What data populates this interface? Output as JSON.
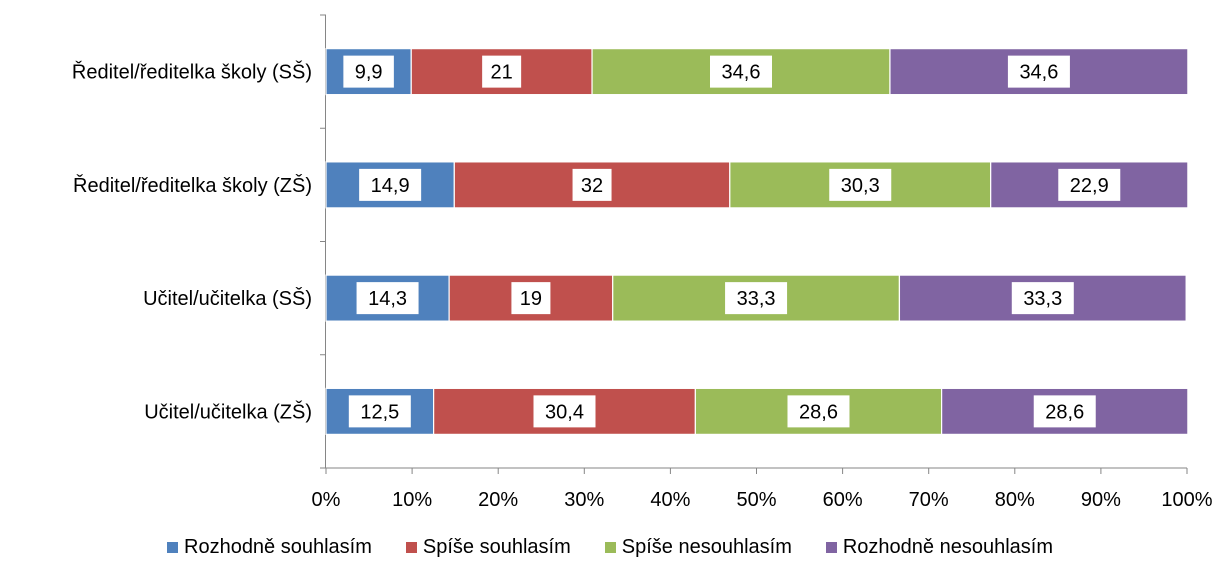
{
  "chart_data": {
    "type": "bar",
    "orientation": "horizontal",
    "stacked": true,
    "percent_stacked": true,
    "title": "",
    "xlabel": "",
    "ylabel": "",
    "categories": [
      "Ředitel/ředitelka školy (SŠ)",
      "Ředitel/ředitelka školy (ZŠ)",
      "Učitel/učitelka (SŠ)",
      "Učitel/učitelka (ZŠ)"
    ],
    "series": [
      {
        "name": "Rozhodně souhlasím",
        "color": "#4F81BD",
        "values": [
          9.9,
          14.9,
          14.3,
          12.5
        ],
        "labels": [
          "9,9",
          "14,9",
          "14,3",
          "12,5"
        ]
      },
      {
        "name": "Spíše souhlasím",
        "color": "#C0504D",
        "values": [
          21,
          32,
          19,
          30.4
        ],
        "labels": [
          "21",
          "32",
          "19",
          "30,4"
        ]
      },
      {
        "name": "Spíše nesouhlasím",
        "color": "#9BBB59",
        "values": [
          34.6,
          30.3,
          33.3,
          28.6
        ],
        "labels": [
          "34,6",
          "30,3",
          "33,3",
          "28,6"
        ]
      },
      {
        "name": "Rozhodně nesouhlasím",
        "color": "#8064A2",
        "values": [
          34.6,
          22.9,
          33.3,
          28.6
        ],
        "labels": [
          "34,6",
          "22,9",
          "33,3",
          "28,6"
        ]
      }
    ],
    "xlim": [
      0,
      100
    ],
    "xticks": [
      "0%",
      "10%",
      "20%",
      "30%",
      "40%",
      "50%",
      "60%",
      "70%",
      "80%",
      "90%",
      "100%"
    ],
    "grid": false,
    "legend_position": "bottom"
  }
}
